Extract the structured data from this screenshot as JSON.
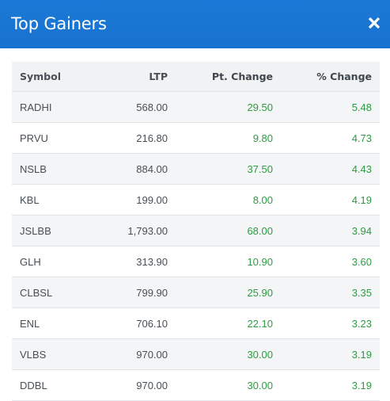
{
  "modal": {
    "title": "Top Gainers",
    "close_icon": "close-icon",
    "accent_color": "#1976d2",
    "positive_color": "#2e9a42"
  },
  "table": {
    "columns": [
      "Symbol",
      "LTP",
      "Pt. Change",
      "% Change"
    ],
    "rows": [
      {
        "symbol": "RADHI",
        "ltp": "568.00",
        "pt_change": "29.50",
        "pct_change": "5.48"
      },
      {
        "symbol": "PRVU",
        "ltp": "216.80",
        "pt_change": "9.80",
        "pct_change": "4.73"
      },
      {
        "symbol": "NSLB",
        "ltp": "884.00",
        "pt_change": "37.50",
        "pct_change": "4.43"
      },
      {
        "symbol": "KBL",
        "ltp": "199.00",
        "pt_change": "8.00",
        "pct_change": "4.19"
      },
      {
        "symbol": "JSLBB",
        "ltp": "1,793.00",
        "pt_change": "68.00",
        "pct_change": "3.94"
      },
      {
        "symbol": "GLH",
        "ltp": "313.90",
        "pt_change": "10.90",
        "pct_change": "3.60"
      },
      {
        "symbol": "CLBSL",
        "ltp": "799.90",
        "pt_change": "25.90",
        "pct_change": "3.35"
      },
      {
        "symbol": "ENL",
        "ltp": "706.10",
        "pt_change": "22.10",
        "pct_change": "3.23"
      },
      {
        "symbol": "VLBS",
        "ltp": "970.00",
        "pt_change": "30.00",
        "pct_change": "3.19"
      },
      {
        "symbol": "DDBL",
        "ltp": "970.00",
        "pt_change": "30.00",
        "pct_change": "3.19"
      }
    ]
  }
}
